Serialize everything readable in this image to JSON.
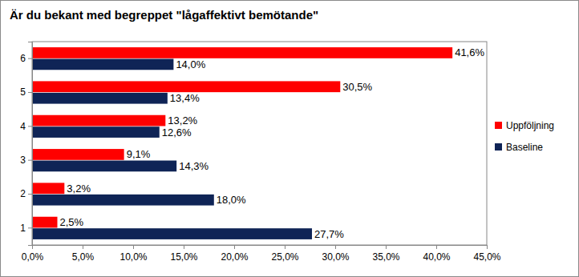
{
  "chart_data": {
    "type": "bar",
    "orientation": "horizontal",
    "title": "Är du bekant med begreppet \"lågaffektivt bemötande\"",
    "categories": [
      "1",
      "2",
      "3",
      "4",
      "5",
      "6"
    ],
    "series": [
      {
        "name": "Uppföljning",
        "color": "#ff0000",
        "values": [
          2.5,
          3.2,
          9.1,
          13.2,
          30.5,
          41.6
        ],
        "value_labels": [
          "2,5%",
          "3,2%",
          "9,1%",
          "13,2%",
          "30,5%",
          "41,6%"
        ]
      },
      {
        "name": "Baseline",
        "color": "#0f2456",
        "values": [
          27.7,
          18.0,
          14.3,
          12.6,
          13.4,
          14.0
        ],
        "value_labels": [
          "27,7%",
          "18,0%",
          "14,3%",
          "12,6%",
          "13,4%",
          "14,0%"
        ]
      }
    ],
    "xlim": [
      0,
      45
    ],
    "xticks": [
      {
        "value": 0,
        "label": "0,0%"
      },
      {
        "value": 5,
        "label": "5,0%"
      },
      {
        "value": 10,
        "label": "10,0%"
      },
      {
        "value": 15,
        "label": "15,0%"
      },
      {
        "value": 20,
        "label": "20,0%"
      },
      {
        "value": 25,
        "label": "25,0%"
      },
      {
        "value": 30,
        "label": "30,0%"
      },
      {
        "value": 35,
        "label": "35,0%"
      },
      {
        "value": 40,
        "label": "40,0%"
      },
      {
        "value": 45,
        "label": "45,0%"
      }
    ],
    "grid": false,
    "legend": "right",
    "data_labels": true
  }
}
